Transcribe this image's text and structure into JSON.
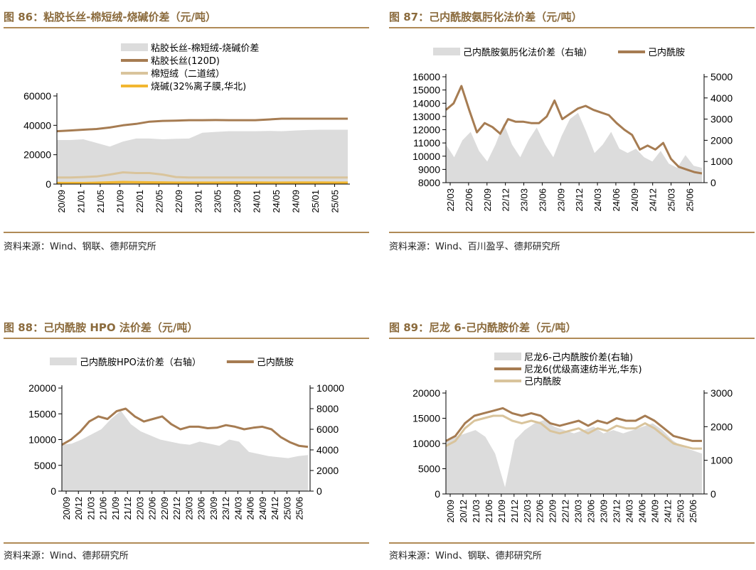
{
  "chart_data": [
    {
      "type": "area+line",
      "figure_title": "图 86：粘胶长丝-棉短绒-烧碱价差（元/吨）",
      "source": "资料来源：Wind、钢联、德邦研究所",
      "legend_position": "top",
      "secondary_axis": false,
      "ylim": [
        0,
        60000
      ],
      "y_ticks": [
        0,
        20000,
        40000,
        60000
      ],
      "x_ticks": [
        "20/09",
        "21/01",
        "21/05",
        "21/09",
        "22/01",
        "22/05",
        "22/09",
        "23/01",
        "23/05",
        "23/09",
        "24/01",
        "24/05",
        "24/09",
        "25/01",
        "25/05"
      ],
      "x_start": "20/09",
      "x_end": "25/08",
      "series": [
        {
          "name": "粘胶长丝-棉短绒-烧碱价差",
          "kind": "area",
          "axis": "left",
          "color": "#dcdcdc",
          "values": [
            30000,
            30000,
            30500,
            28000,
            25500,
            29000,
            31000,
            31000,
            30500,
            30800,
            31000,
            35000,
            35500,
            36000,
            36000,
            36000,
            36200,
            36000,
            36500,
            36800,
            37000,
            37000,
            37000
          ]
        },
        {
          "name": "粘胶长丝(120D)",
          "kind": "line",
          "axis": "left",
          "color": "#a67c52",
          "values": [
            36000,
            36500,
            37000,
            37500,
            38500,
            40000,
            41000,
            42500,
            43000,
            43200,
            43500,
            43500,
            43600,
            43500,
            43500,
            43500,
            44000,
            44500,
            44500,
            44500,
            44500,
            44500,
            44500
          ]
        },
        {
          "name": "棉短绒（二道绒）",
          "kind": "line",
          "axis": "left",
          "color": "#d9c49c",
          "values": [
            4500,
            4500,
            4800,
            5200,
            6500,
            8000,
            7500,
            7500,
            6500,
            4800,
            4500,
            4500,
            4500,
            4500,
            4500,
            4500,
            4500,
            4500,
            4500,
            4500,
            4500,
            4500,
            4500
          ]
        },
        {
          "name": "烧碱(32%离子膜,华北)",
          "kind": "line",
          "axis": "left",
          "color": "#f2b731",
          "values": [
            700,
            700,
            700,
            800,
            1100,
            1300,
            1200,
            1100,
            1000,
            900,
            900,
            900,
            900,
            950,
            950,
            950,
            900,
            900,
            950,
            950,
            950,
            900,
            900
          ]
        }
      ]
    },
    {
      "type": "area+line",
      "figure_title": "图 87：己内酰胺氨肟化法价差（元/吨）",
      "source": "资料来源：Wind、百川盈孚、德邦研究所",
      "legend_position": "top",
      "secondary_axis": true,
      "ylim": [
        8000,
        16000
      ],
      "y_ticks": [
        8000,
        9000,
        10000,
        11000,
        12000,
        13000,
        14000,
        15000,
        16000
      ],
      "y2lim": [
        0,
        5000
      ],
      "y2_ticks": [
        0,
        1000,
        2000,
        3000,
        4000,
        5000
      ],
      "x_ticks": [
        "22/03",
        "22/06",
        "22/09",
        "22/12",
        "23/03",
        "23/06",
        "23/09",
        "23/12",
        "24/03",
        "24/06",
        "24/09",
        "24/12",
        "25/03",
        "25/06"
      ],
      "x_start": "22/03",
      "x_end": "25/08",
      "series": [
        {
          "name": "己内酰胺氨肟化法价差（右轴）",
          "kind": "area",
          "axis": "right",
          "color": "#dcdcdc",
          "values": [
            1800,
            1200,
            2000,
            2400,
            1500,
            1000,
            1800,
            2800,
            1800,
            1200,
            2000,
            2600,
            1800,
            1200,
            2200,
            3000,
            3300,
            2400,
            1400,
            1800,
            2400,
            1600,
            1400,
            1600,
            1200,
            1000,
            1500,
            900,
            700,
            1300,
            800,
            700
          ]
        },
        {
          "name": "己内酰胺",
          "kind": "line",
          "axis": "left",
          "color": "#a67c52",
          "values": [
            13500,
            14000,
            15300,
            13500,
            11800,
            12500,
            12200,
            11700,
            12800,
            12600,
            12600,
            12500,
            12500,
            13000,
            14200,
            12800,
            13200,
            13600,
            13800,
            13500,
            13300,
            13100,
            12500,
            12000,
            11600,
            10500,
            10800,
            10500,
            11000,
            9800,
            9200,
            9000,
            8800,
            8700
          ]
        }
      ]
    },
    {
      "type": "area+line",
      "figure_title": "图 88：己内酰胺 HPO 法价差（元/吨）",
      "source": "资料来源：Wind、德邦研究所",
      "legend_position": "top",
      "secondary_axis": true,
      "ylim": [
        0,
        20000
      ],
      "y_ticks": [
        0,
        5000,
        10000,
        15000,
        20000
      ],
      "y2lim": [
        0,
        10000
      ],
      "y2_ticks": [
        0,
        2000,
        4000,
        6000,
        8000,
        10000
      ],
      "x_ticks": [
        "20/09",
        "20/12",
        "21/03",
        "21/06",
        "21/09",
        "21/12",
        "22/03",
        "22/06",
        "22/09",
        "22/12",
        "23/03",
        "23/06",
        "23/09",
        "23/12",
        "24/03",
        "24/06",
        "24/09",
        "24/12",
        "25/03",
        "25/06"
      ],
      "x_start": "20/09",
      "x_end": "25/08",
      "series": [
        {
          "name": "己内酰胺HPO法价差（右轴）",
          "kind": "area",
          "axis": "right",
          "color": "#dcdcdc",
          "values": [
            4500,
            4600,
            5000,
            5500,
            6000,
            7000,
            7800,
            6500,
            5800,
            5400,
            5000,
            4800,
            4600,
            4500,
            4800,
            4600,
            4400,
            5000,
            4800,
            3800,
            3600,
            3400,
            3300,
            3200,
            3400,
            3500
          ]
        },
        {
          "name": "己内酰胺",
          "kind": "line",
          "axis": "left",
          "color": "#a67c52",
          "values": [
            9000,
            10000,
            11500,
            13500,
            14500,
            14000,
            15500,
            16000,
            14500,
            13500,
            14000,
            14500,
            13000,
            12000,
            12500,
            12500,
            12200,
            12300,
            12800,
            12500,
            12000,
            12300,
            12500,
            12000,
            10500,
            9500,
            8800,
            8600
          ]
        }
      ]
    },
    {
      "type": "area+line",
      "figure_title": "图 89：尼龙 6-己内酰胺价差（元/吨）",
      "source": "资料来源：Wind、钢联、德邦研究所",
      "legend_position": "top",
      "secondary_axis": true,
      "ylim": [
        0,
        20000
      ],
      "y_ticks": [
        0,
        5000,
        10000,
        15000,
        20000
      ],
      "y2lim": [
        0,
        3000
      ],
      "y2_ticks": [
        0,
        1000,
        2000,
        3000
      ],
      "x_ticks": [
        "20/09",
        "20/12",
        "21/03",
        "21/06",
        "21/09",
        "21/12",
        "22/03",
        "22/06",
        "22/09",
        "22/12",
        "23/03",
        "23/06",
        "23/09",
        "23/12",
        "24/03",
        "24/06",
        "24/09",
        "24/12",
        "25/03",
        "25/06"
      ],
      "x_start": "20/09",
      "x_end": "25/08",
      "series": [
        {
          "name": "尼龙6-己内酰胺价差(右轴)",
          "kind": "area",
          "axis": "right",
          "color": "#dcdcdc",
          "values": [
            1600,
            1700,
            1800,
            1900,
            1700,
            1200,
            200,
            1600,
            1900,
            2100,
            2200,
            2000,
            1900,
            1800,
            1900,
            2000,
            1800,
            1900,
            1800,
            1900,
            2000,
            2100,
            1900,
            1600,
            1400,
            1300,
            1200
          ]
        },
        {
          "name": "尼龙6(优级高速纺半光,华东)",
          "kind": "line",
          "axis": "left",
          "color": "#a67c52",
          "values": [
            10500,
            11500,
            14000,
            15500,
            16000,
            16500,
            17000,
            16000,
            15500,
            16000,
            15500,
            14000,
            13500,
            14000,
            14500,
            13500,
            14500,
            14000,
            15000,
            14500,
            14500,
            15500,
            14500,
            13000,
            11500,
            11000,
            10500,
            10500
          ]
        },
        {
          "name": "己内酰胺",
          "kind": "line",
          "axis": "left",
          "color": "#d9c49c",
          "values": [
            9500,
            10500,
            13000,
            14500,
            15000,
            15500,
            15500,
            14500,
            14000,
            14500,
            14000,
            12500,
            12000,
            12500,
            13000,
            12000,
            13000,
            12500,
            13500,
            13000,
            13000,
            14000,
            13000,
            11500,
            10000,
            9500,
            9000,
            9000
          ]
        }
      ]
    }
  ]
}
